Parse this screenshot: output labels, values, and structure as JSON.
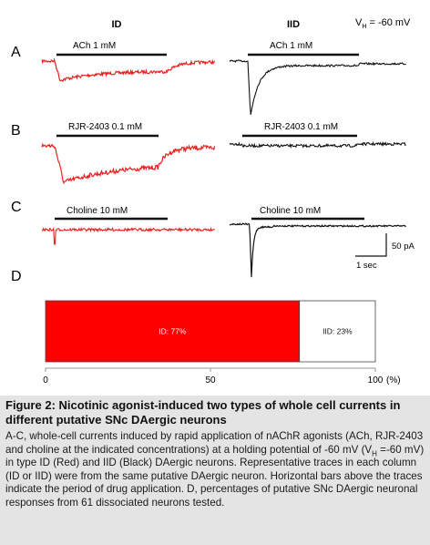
{
  "figure": {
    "col_id": "ID",
    "col_iid": "IID",
    "vh_label": "V",
    "vh_sub": "H",
    "vh_value": " = -60 mV",
    "panels": [
      {
        "letter": "A",
        "left_label": "ACh 1 mM",
        "right_label": "ACh 1 mM"
      },
      {
        "letter": "B",
        "left_label": "RJR-2403 0.1 mM",
        "right_label": "RJR-2403 0.1 mM"
      },
      {
        "letter": "C",
        "left_label": "Choline 10 mM",
        "right_label": "Choline 10 mM"
      }
    ],
    "scale_bar": {
      "amplitude": "50 pA",
      "time": "1 sec"
    },
    "colors": {
      "id": "#e8201e",
      "iid": "#111111"
    }
  },
  "chart_data": {
    "type": "bar",
    "panel": "D",
    "stacked": true,
    "orientation": "horizontal",
    "series": [
      {
        "name": "ID",
        "value": 77,
        "label": "ID:  77%",
        "color": "#ff0000"
      },
      {
        "name": "IID",
        "value": 23,
        "label": "IID:  23%",
        "color": "#ffffff"
      }
    ],
    "xlim": [
      0,
      100
    ],
    "x_ticks": [
      "0",
      "50",
      "100"
    ],
    "x_unit": "(%)"
  },
  "caption": {
    "title": "Figure 2: Nicotinic agonist-induced two types of whole cell currents in different putative SNc DAergic neurons",
    "body_part1": "A-C, whole-cell currents induced by rapid application of nAChR agonists (ACh, RJR-2403 and choline at the indicated concentrations) at a holding potential of -60 mV (V",
    "body_sub": "H",
    "body_part2": " =-60 mV) in type ID (Red) and IID (Black) DAergic neurons. Representative traces in each column (ID or IID) were from the same putative DAergic neuron. Horizontal bars above the traces indicate the period of drug application. D, percentages of putative SNc DAergic neuronal responses from 61 dissociated neurons tested."
  }
}
